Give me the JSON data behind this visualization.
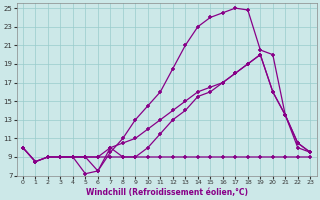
{
  "xlabel": "Windchill (Refroidissement éolien,°C)",
  "bg_color": "#cce8e8",
  "line_color": "#880088",
  "grid_color": "#99cccc",
  "xlim": [
    -0.5,
    23.5
  ],
  "ylim": [
    7,
    25.5
  ],
  "xticks": [
    0,
    1,
    2,
    3,
    4,
    5,
    6,
    7,
    8,
    9,
    10,
    11,
    12,
    13,
    14,
    15,
    16,
    17,
    18,
    19,
    20,
    21,
    22,
    23
  ],
  "yticks": [
    7,
    9,
    11,
    13,
    15,
    17,
    19,
    21,
    23,
    25
  ],
  "line1_x": [
    0,
    1,
    2,
    3,
    4,
    5,
    6,
    7,
    8,
    9,
    10,
    11,
    12,
    13,
    14,
    15,
    16,
    17,
    18,
    19,
    20,
    21,
    22,
    23
  ],
  "line1_y": [
    10,
    8.5,
    9,
    9,
    9,
    9,
    9,
    9,
    9,
    9,
    9,
    9,
    9,
    9,
    9,
    9,
    9,
    9,
    9,
    9,
    9,
    9,
    9,
    9
  ],
  "line2_x": [
    0,
    1,
    2,
    3,
    4,
    5,
    6,
    7,
    8,
    9,
    10,
    11,
    12,
    13,
    14,
    15,
    16,
    17,
    18,
    19,
    20,
    21,
    22,
    23
  ],
  "line2_y": [
    10,
    8.5,
    9,
    9,
    9,
    7.2,
    7.5,
    9.5,
    11,
    13,
    14.5,
    16,
    18.5,
    21,
    23,
    24,
    24.5,
    25,
    24.8,
    20.5,
    20,
    13.5,
    10.5,
    9.5
  ],
  "line3_x": [
    3,
    4,
    5,
    6,
    7,
    8,
    9,
    10,
    11,
    12,
    13,
    14,
    15,
    16,
    17,
    18,
    19,
    20,
    21,
    22,
    23
  ],
  "line3_y": [
    9,
    9,
    9,
    7.5,
    10,
    9,
    9,
    10,
    11.5,
    13,
    14,
    15.5,
    16,
    17,
    18,
    19,
    20,
    16,
    13.5,
    10,
    9.5
  ],
  "line4_x": [
    0,
    1,
    2,
    3,
    4,
    5,
    6,
    7,
    8,
    9,
    10,
    11,
    12,
    13,
    14,
    15,
    16,
    17,
    18,
    19,
    20,
    21,
    22,
    23
  ],
  "line4_y": [
    10,
    8.5,
    9,
    9,
    9,
    9,
    9,
    10,
    10.5,
    11,
    12,
    13,
    14,
    15,
    16,
    16.5,
    17,
    18,
    19,
    20,
    16,
    13.5,
    10.5,
    9.5
  ]
}
